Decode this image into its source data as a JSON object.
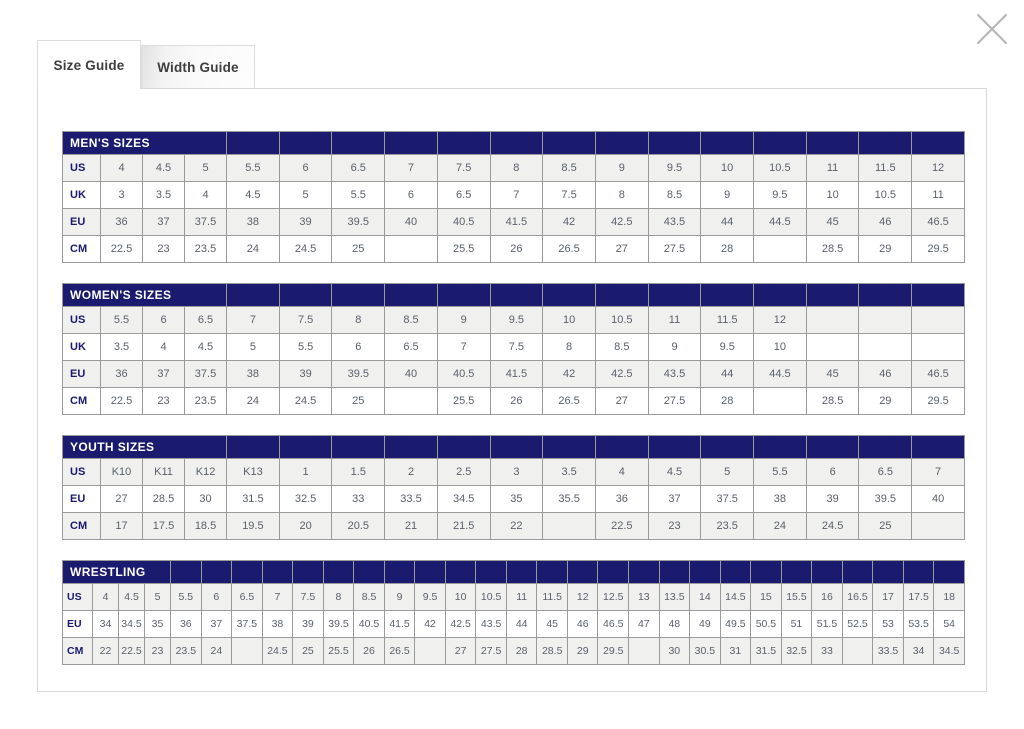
{
  "modal": {
    "close_label": "Close"
  },
  "tabs": [
    {
      "label": "Size Guide",
      "active": true
    },
    {
      "label": "Width Guide",
      "active": false
    }
  ],
  "colors": {
    "header_navy": "#1a1a6e",
    "row_alt_gray": "#f0f0ef",
    "inner_border": "#9a9a9a",
    "outer_border": "#4c4c4c",
    "data_text": "#5a606b",
    "panel_border": "#d9d9d9",
    "close_icon_gray": "#b5b5b5"
  },
  "tables": [
    {
      "name": "mens-sizes",
      "title": "MEN'S SIZES",
      "title_colspan": 4,
      "rows": [
        {
          "label": "US",
          "values": [
            "4",
            "4.5",
            "5",
            "5.5",
            "6",
            "6.5",
            "7",
            "7.5",
            "8",
            "8.5",
            "9",
            "9.5",
            "10",
            "10.5",
            "11",
            "11.5",
            "12"
          ]
        },
        {
          "label": "UK",
          "values": [
            "3",
            "3.5",
            "4",
            "4.5",
            "5",
            "5.5",
            "6",
            "6.5",
            "7",
            "7.5",
            "8",
            "8.5",
            "9",
            "9.5",
            "10",
            "10.5",
            "11"
          ]
        },
        {
          "label": "EU",
          "values": [
            "36",
            "37",
            "37.5",
            "38",
            "39",
            "39.5",
            "40",
            "40.5",
            "41.5",
            "42",
            "42.5",
            "43.5",
            "44",
            "44.5",
            "45",
            "46",
            "46.5"
          ]
        },
        {
          "label": "CM",
          "values": [
            "22.5",
            "23",
            "23.5",
            "24",
            "24.5",
            "25",
            "",
            "25.5",
            "26",
            "26.5",
            "27",
            "27.5",
            "28",
            "",
            "28.5",
            "29",
            "29.5"
          ]
        }
      ]
    },
    {
      "name": "womens-sizes",
      "title": "WOMEN'S SIZES",
      "title_colspan": 4,
      "rows": [
        {
          "label": "US",
          "values": [
            "5.5",
            "6",
            "6.5",
            "7",
            "7.5",
            "8",
            "8.5",
            "9",
            "9.5",
            "10",
            "10.5",
            "11",
            "11.5",
            "12",
            "",
            "",
            ""
          ]
        },
        {
          "label": "UK",
          "values": [
            "3.5",
            "4",
            "4.5",
            "5",
            "5.5",
            "6",
            "6.5",
            "7",
            "7.5",
            "8",
            "8.5",
            "9",
            "9.5",
            "10",
            "",
            "",
            ""
          ]
        },
        {
          "label": "EU",
          "values": [
            "36",
            "37",
            "37.5",
            "38",
            "39",
            "39.5",
            "40",
            "40.5",
            "41.5",
            "42",
            "42.5",
            "43.5",
            "44",
            "44.5",
            "45",
            "46",
            "46.5"
          ]
        },
        {
          "label": "CM",
          "values": [
            "22.5",
            "23",
            "23.5",
            "24",
            "24.5",
            "25",
            "",
            "25.5",
            "26",
            "26.5",
            "27",
            "27.5",
            "28",
            "",
            "28.5",
            "29",
            "29.5"
          ]
        }
      ]
    },
    {
      "name": "youth-sizes",
      "title": "YOUTH SIZES",
      "title_colspan": 4,
      "rows": [
        {
          "label": "US",
          "values": [
            "K10",
            "K11",
            "K12",
            "K13",
            "1",
            "1.5",
            "2",
            "2.5",
            "3",
            "3.5",
            "4",
            "4.5",
            "5",
            "5.5",
            "6",
            "6.5",
            "7"
          ]
        },
        {
          "label": "EU",
          "values": [
            "27",
            "28.5",
            "30",
            "31.5",
            "32.5",
            "33",
            "33.5",
            "34.5",
            "35",
            "35.5",
            "36",
            "37",
            "37.5",
            "38",
            "39",
            "39.5",
            "40"
          ]
        },
        {
          "label": "CM",
          "values": [
            "17",
            "17.5",
            "18.5",
            "19.5",
            "20",
            "20.5",
            "21",
            "21.5",
            "22",
            "",
            "22.5",
            "23",
            "23.5",
            "24",
            "24.5",
            "25",
            ""
          ]
        }
      ]
    },
    {
      "name": "wrestling",
      "title": "WRESTLING",
      "title_colspan": 4,
      "rows": [
        {
          "label": "US",
          "values": [
            "4",
            "4.5",
            "5",
            "5.5",
            "6",
            "6.5",
            "7",
            "7.5",
            "8",
            "8.5",
            "9",
            "9.5",
            "10",
            "10.5",
            "11",
            "11.5",
            "12",
            "12.5",
            "13",
            "13.5",
            "14",
            "14.5",
            "15",
            "15.5",
            "16",
            "16.5",
            "17",
            "17.5",
            "18"
          ]
        },
        {
          "label": "EU",
          "values": [
            "34",
            "34.5",
            "35",
            "36",
            "37",
            "37.5",
            "38",
            "39",
            "39.5",
            "40.5",
            "41.5",
            "42",
            "42.5",
            "43.5",
            "44",
            "45",
            "46",
            "46.5",
            "47",
            "48",
            "49",
            "49.5",
            "50.5",
            "51",
            "51.5",
            "52.5",
            "53",
            "53.5",
            "54"
          ]
        },
        {
          "label": "CM",
          "values": [
            "22",
            "22.5",
            "23",
            "23.5",
            "24",
            "",
            "24.5",
            "25",
            "25.5",
            "26",
            "26.5",
            "",
            "27",
            "27.5",
            "28",
            "28.5",
            "29",
            "29.5",
            "",
            "30",
            "30.5",
            "31",
            "31.5",
            "32.5",
            "33",
            "",
            "33.5",
            "34",
            "34.5"
          ]
        }
      ]
    }
  ]
}
